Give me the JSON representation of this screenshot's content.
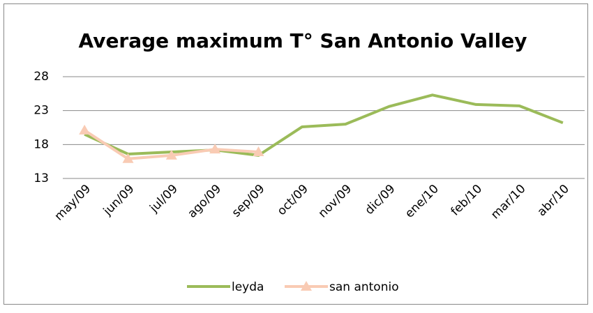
{
  "chart_data": {
    "type": "line",
    "title": "Average maximum T° San Antonio Valley",
    "categories": [
      "may/09",
      "jun/09",
      "jul/09",
      "ago/09",
      "sep/09",
      "oct/09",
      "nov/09",
      "dic/09",
      "ene/10",
      "feb/10",
      "mar/10",
      "abr/10"
    ],
    "series": [
      {
        "name": "leyda",
        "color": "#9bbb59",
        "values": [
          19.5,
          16.6,
          16.9,
          17.2,
          16.4,
          20.6,
          21.0,
          23.6,
          25.3,
          23.9,
          23.7,
          21.2
        ]
      },
      {
        "name": "san antonio",
        "color": "#f9cbb4",
        "values": [
          20.1,
          15.9,
          16.4,
          17.3,
          16.9,
          null,
          null,
          null,
          null,
          null,
          null,
          null
        ]
      }
    ],
    "ylim": [
      13,
      28
    ],
    "yticks": [
      13,
      18,
      23,
      28
    ],
    "grid": true
  }
}
